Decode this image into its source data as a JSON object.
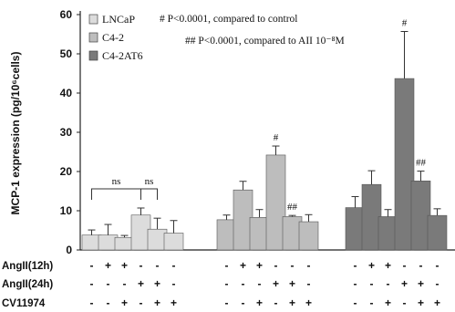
{
  "chart_data": {
    "type": "bar",
    "ylabel": "MCP-1 expression (pg/10⁶cells)",
    "ylim": [
      0,
      60
    ],
    "yticks": [
      0,
      10,
      20,
      30,
      40,
      50,
      60
    ],
    "series": [
      {
        "name": "LNCaP",
        "color": "#dcdcdc",
        "values": [
          3.8,
          3.8,
          3.2,
          8.9,
          5.3,
          4.3
        ],
        "errors": [
          1.3,
          2.7,
          0.5,
          1.8,
          2.8,
          3.2
        ]
      },
      {
        "name": "C4-2",
        "color": "#bdbdbd",
        "values": [
          7.7,
          15.3,
          8.3,
          24.2,
          8.5,
          7.2
        ],
        "errors": [
          1.2,
          2.2,
          2.0,
          2.3,
          0.3,
          1.8
        ]
      },
      {
        "name": "C4-2AT6",
        "color": "#7a7a7a",
        "values": [
          10.8,
          16.7,
          8.5,
          43.7,
          17.6,
          8.8
        ],
        "errors": [
          2.8,
          3.5,
          1.8,
          12.0,
          2.5,
          1.7
        ]
      }
    ],
    "annotations": [
      {
        "series": 1,
        "bar": 3,
        "text": "#"
      },
      {
        "series": 1,
        "bar": 4,
        "text": "##"
      },
      {
        "series": 2,
        "bar": 3,
        "text": "#"
      },
      {
        "series": 2,
        "bar": 4,
        "text": "##"
      }
    ],
    "brackets": [
      {
        "text": "ns",
        "from_bar": 0,
        "to_bar": 3
      },
      {
        "text": "ns",
        "from_bar": 3,
        "to_bar": 4
      }
    ],
    "legend_position": "top-left",
    "notes": [
      "# P<0.0001, compared to control",
      "## P<0.0001, compared to AII 10⁻⁸M"
    ],
    "treatment_rows": [
      {
        "label": "AngII(12h)",
        "signs": [
          "-",
          "+",
          "+",
          "-",
          "-",
          "-"
        ]
      },
      {
        "label": "AngII(24h)",
        "signs": [
          "-",
          "-",
          "-",
          "+",
          "+",
          "-"
        ]
      },
      {
        "label": "CV11974",
        "signs": [
          "-",
          "-",
          "+",
          "-",
          "+",
          "+"
        ]
      }
    ]
  }
}
